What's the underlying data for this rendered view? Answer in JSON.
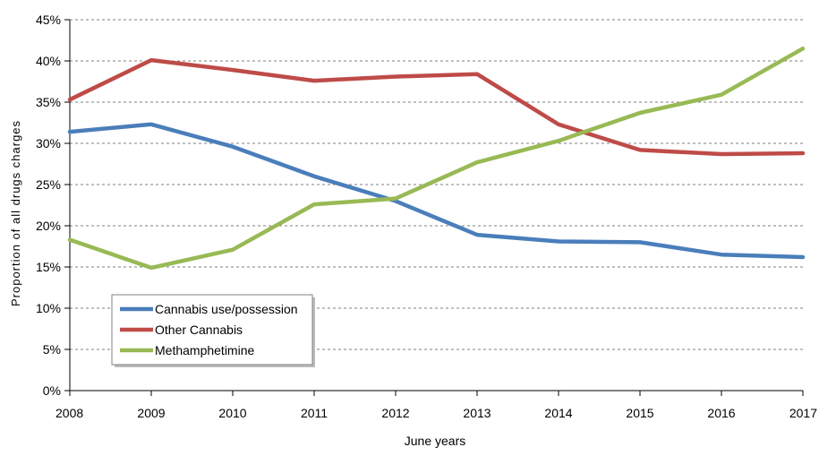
{
  "chart_data": {
    "type": "line",
    "title": "",
    "xlabel": "June years",
    "ylabel": "Proportion of all drugs charges",
    "x": [
      "2008",
      "2009",
      "2010",
      "2011",
      "2012",
      "2013",
      "2014",
      "2015",
      "2016",
      "2017"
    ],
    "ylim": [
      0,
      45
    ],
    "yticks": [
      "0%",
      "5%",
      "10%",
      "15%",
      "20%",
      "25%",
      "30%",
      "35%",
      "40%",
      "45%"
    ],
    "grid": true,
    "legend_position": "bottom-left",
    "series": [
      {
        "name": "Cannabis use/possession",
        "color": "#4a7ebb",
        "values": [
          31.4,
          32.3,
          29.6,
          26.0,
          23.0,
          18.9,
          18.1,
          18.0,
          16.5,
          16.2
        ]
      },
      {
        "name": "Other Cannabis",
        "color": "#be4b48",
        "values": [
          35.3,
          40.1,
          38.9,
          37.6,
          38.1,
          38.4,
          32.3,
          29.2,
          28.7,
          28.8
        ]
      },
      {
        "name": "Methamphetimine",
        "color": "#98b954",
        "values": [
          18.3,
          14.9,
          17.1,
          22.6,
          23.3,
          27.7,
          30.3,
          33.7,
          35.9,
          41.5
        ]
      }
    ]
  }
}
